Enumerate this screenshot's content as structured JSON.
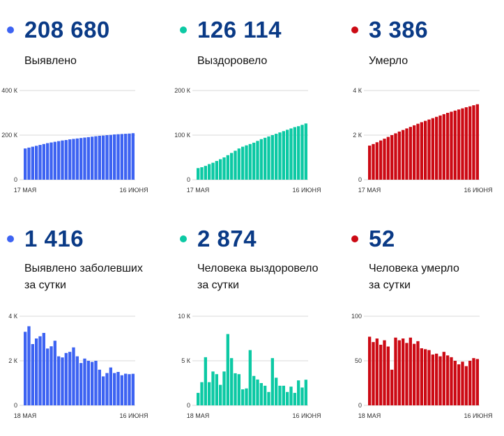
{
  "panels": [
    {
      "value": "208 680",
      "label_lines": [
        "Выявлено"
      ],
      "color": "#3d63f2",
      "chart_data": {
        "type": "bar",
        "xlabel": "",
        "ylabel": "",
        "ylim": [
          0,
          400000
        ],
        "yticks": [
          0,
          200000,
          400000
        ],
        "ytick_labels": [
          "0",
          "200 К",
          "400 К"
        ],
        "x_labels": [
          "17 МАЯ",
          "16 ИЮНЯ"
        ],
        "values": [
          140000,
          144000,
          148000,
          152000,
          156000,
          160000,
          164000,
          167000,
          170000,
          173000,
          176000,
          178000,
          181000,
          183000,
          185000,
          187000,
          189000,
          191000,
          193000,
          195000,
          197000,
          198000,
          200000,
          201000,
          203000,
          204000,
          205000,
          206000,
          207000,
          208680
        ]
      }
    },
    {
      "value": "126 114",
      "label_lines": [
        "Выздоровело"
      ],
      "color": "#0cc9a4",
      "chart_data": {
        "type": "bar",
        "xlabel": "",
        "ylabel": "",
        "ylim": [
          0,
          200000
        ],
        "yticks": [
          0,
          100000,
          200000
        ],
        "ytick_labels": [
          "0",
          "100 К",
          "200 К"
        ],
        "x_labels": [
          "17 МАЯ",
          "16 ИЮНЯ"
        ],
        "values": [
          26000,
          28000,
          31000,
          35000,
          38000,
          42000,
          46000,
          50000,
          55000,
          60000,
          65000,
          70000,
          74000,
          77000,
          80000,
          83000,
          87000,
          91000,
          94000,
          97000,
          100000,
          103000,
          106000,
          109000,
          112000,
          115000,
          118000,
          120000,
          123000,
          126114
        ]
      }
    },
    {
      "value": "3 386",
      "label_lines": [
        "Умерло"
      ],
      "color": "#cc0a14",
      "chart_data": {
        "type": "bar",
        "xlabel": "",
        "ylabel": "",
        "ylim": [
          0,
          4000
        ],
        "yticks": [
          0,
          2000,
          4000
        ],
        "ytick_labels": [
          "0",
          "2 К",
          "4 К"
        ],
        "x_labels": [
          "17 МАЯ",
          "16 ИЮНЯ"
        ],
        "values": [
          1530,
          1600,
          1680,
          1760,
          1840,
          1920,
          2000,
          2080,
          2160,
          2230,
          2300,
          2370,
          2440,
          2510,
          2580,
          2640,
          2700,
          2760,
          2820,
          2880,
          2940,
          3000,
          3050,
          3100,
          3150,
          3200,
          3250,
          3290,
          3340,
          3386
        ]
      }
    },
    {
      "value": "1 416",
      "label_lines": [
        "Выявлено заболевших",
        "за сутки"
      ],
      "color": "#3d63f2",
      "chart_data": {
        "type": "bar",
        "xlabel": "",
        "ylabel": "",
        "ylim": [
          0,
          4000
        ],
        "yticks": [
          0,
          2000,
          4000
        ],
        "ytick_labels": [
          "0",
          "2 К",
          "4 К"
        ],
        "x_labels": [
          "18 МАЯ",
          "16 ИЮНЯ"
        ],
        "values": [
          3300,
          3550,
          2750,
          3000,
          3100,
          3250,
          2550,
          2650,
          2900,
          2200,
          2150,
          2350,
          2400,
          2600,
          2200,
          1900,
          2100,
          2000,
          1950,
          2000,
          1600,
          1300,
          1450,
          1700,
          1450,
          1500,
          1350,
          1420,
          1400,
          1416
        ]
      }
    },
    {
      "value": "2 874",
      "label_lines": [
        "Человека выздоровело",
        "за сутки"
      ],
      "color": "#0cc9a4",
      "chart_data": {
        "type": "bar",
        "xlabel": "",
        "ylabel": "",
        "ylim": [
          0,
          10000
        ],
        "yticks": [
          0,
          5000,
          10000
        ],
        "ytick_labels": [
          "0",
          "5 К",
          "10 К"
        ],
        "x_labels": [
          "18 МАЯ",
          "16 ИЮНЯ"
        ],
        "values": [
          1400,
          2600,
          5400,
          2600,
          3800,
          3500,
          2300,
          3800,
          8000,
          5300,
          3600,
          3500,
          1800,
          1900,
          6200,
          3300,
          2900,
          2500,
          2200,
          1500,
          5300,
          3100,
          2200,
          2200,
          1500,
          2100,
          1400,
          2800,
          2000,
          2874
        ]
      }
    },
    {
      "value": "52",
      "label_lines": [
        "Человека умерло",
        "за сутки"
      ],
      "color": "#cc0a14",
      "chart_data": {
        "type": "bar",
        "xlabel": "",
        "ylabel": "",
        "ylim": [
          0,
          100
        ],
        "yticks": [
          0,
          50,
          100
        ],
        "ytick_labels": [
          "0",
          "50",
          "100"
        ],
        "x_labels": [
          "18 МАЯ",
          "16 ИЮНЯ"
        ],
        "values": [
          77,
          71,
          75,
          68,
          73,
          66,
          40,
          76,
          73,
          75,
          70,
          76,
          69,
          72,
          64,
          63,
          62,
          57,
          58,
          55,
          60,
          56,
          54,
          50,
          46,
          49,
          44,
          50,
          53,
          52
        ]
      }
    }
  ]
}
